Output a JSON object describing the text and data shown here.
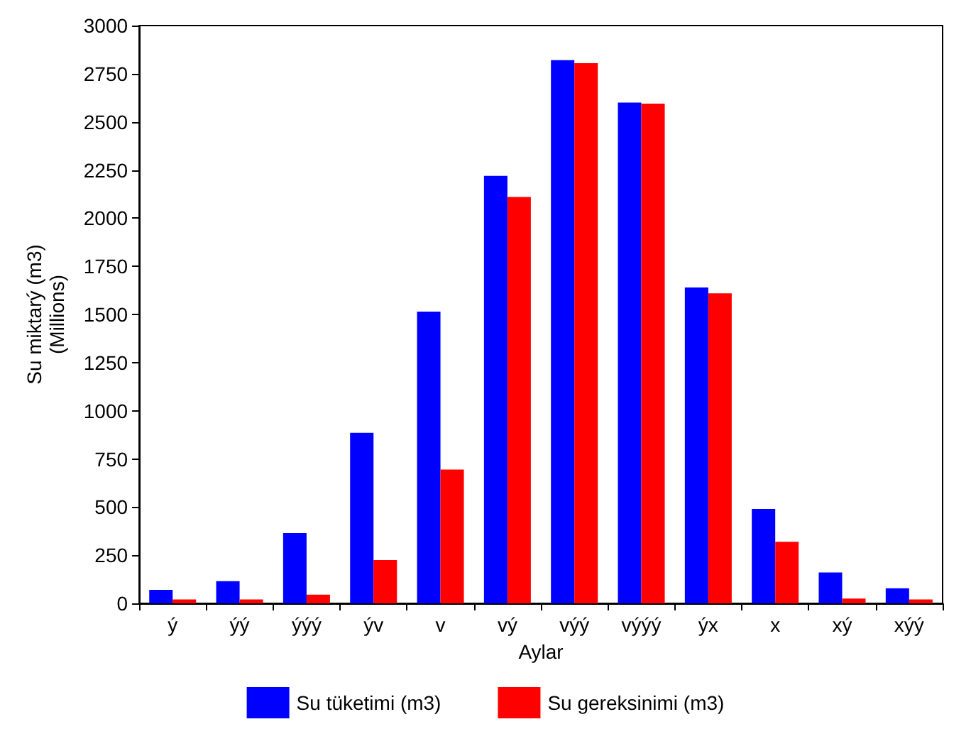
{
  "chart_data": {
    "type": "bar",
    "xlabel": "Aylar",
    "ylabel": "Su miktarý (m3)\n(Millions)",
    "categories": [
      "ý",
      "ýý",
      "ýýý",
      "ýv",
      "v",
      "vý",
      "výý",
      "výýý",
      "ýx",
      "x",
      "xý",
      "xýý"
    ],
    "series": [
      {
        "name": "Su tüketimi (m3)",
        "color": "#0000ff",
        "values": [
          70,
          115,
          365,
          885,
          1515,
          2220,
          2820,
          2600,
          1640,
          490,
          160,
          78
        ]
      },
      {
        "name": "Su gereksinimi (m3)",
        "color": "#ff0000",
        "values": [
          20,
          20,
          45,
          225,
          695,
          2110,
          2805,
          2595,
          1610,
          320,
          25,
          20
        ]
      }
    ],
    "ylim": [
      0,
      3000
    ],
    "yticks": [
      0,
      250,
      500,
      750,
      1000,
      1250,
      1500,
      1750,
      2000,
      2250,
      2500,
      2750,
      3000
    ],
    "grid": false,
    "legend": "bottom"
  }
}
